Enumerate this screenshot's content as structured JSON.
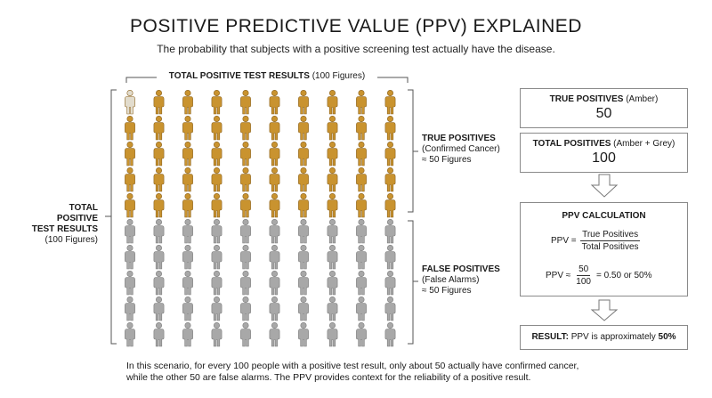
{
  "header": {
    "title": "POSITIVE PREDICTIVE VALUE (PPV) EXPLAINED",
    "subtitle": "The probability that subjects with a positive screening test actually have the disease."
  },
  "grid": {
    "top_label_bold": "TOTAL POSITIVE TEST RESULTS",
    "top_label_rest": " (100 Figures)",
    "left_label_bold_1": "TOTAL POSITIVE",
    "left_label_bold_2": "TEST RESULTS",
    "left_label_rest": "(100 Figures)",
    "true_positive_label_bold": "TRUE POSITIVES",
    "true_positive_label_line2": "(Confirmed Cancer)",
    "true_positive_label_line3": "≈ 50 Figures",
    "false_positive_label_bold": "FALSE POSITIVES",
    "false_positive_label_line2": "(False Alarms)",
    "false_positive_label_line3": "≈ 50 Figures",
    "rows": 10,
    "columns": 10,
    "amber_count": 50,
    "amber_color": "#c9932f",
    "grey_color": "#a8a8a8",
    "light_color": "#e2dccd",
    "light_positions": [
      0
    ]
  },
  "panel": {
    "box1_bold": "TRUE POSITIVES",
    "box1_rest": " (Amber)",
    "box1_value": "50",
    "box2_bold": "TOTAL POSITIVES",
    "box2_rest": " (Amber + Grey)",
    "box2_value": "100",
    "calc_title": "PPV CALCULATION",
    "f1_prefix": "PPV =",
    "f1_num": "True Positives",
    "f1_den": "Total Positives",
    "f2_prefix": "PPV ≈",
    "f2_num": "50",
    "f2_den": "100",
    "f2_suffix": "= 0.50 or 50%",
    "result_bold": "RESULT:",
    "result_text": " PPV is approximately ",
    "result_value": "50%"
  },
  "footer": {
    "line1": "In this scenario, for every 100 people with a positive test result, only about 50 actually have confirmed cancer,",
    "line2": "while the other 50 are false alarms. The PPV provides context for the reliability of a positive result."
  }
}
